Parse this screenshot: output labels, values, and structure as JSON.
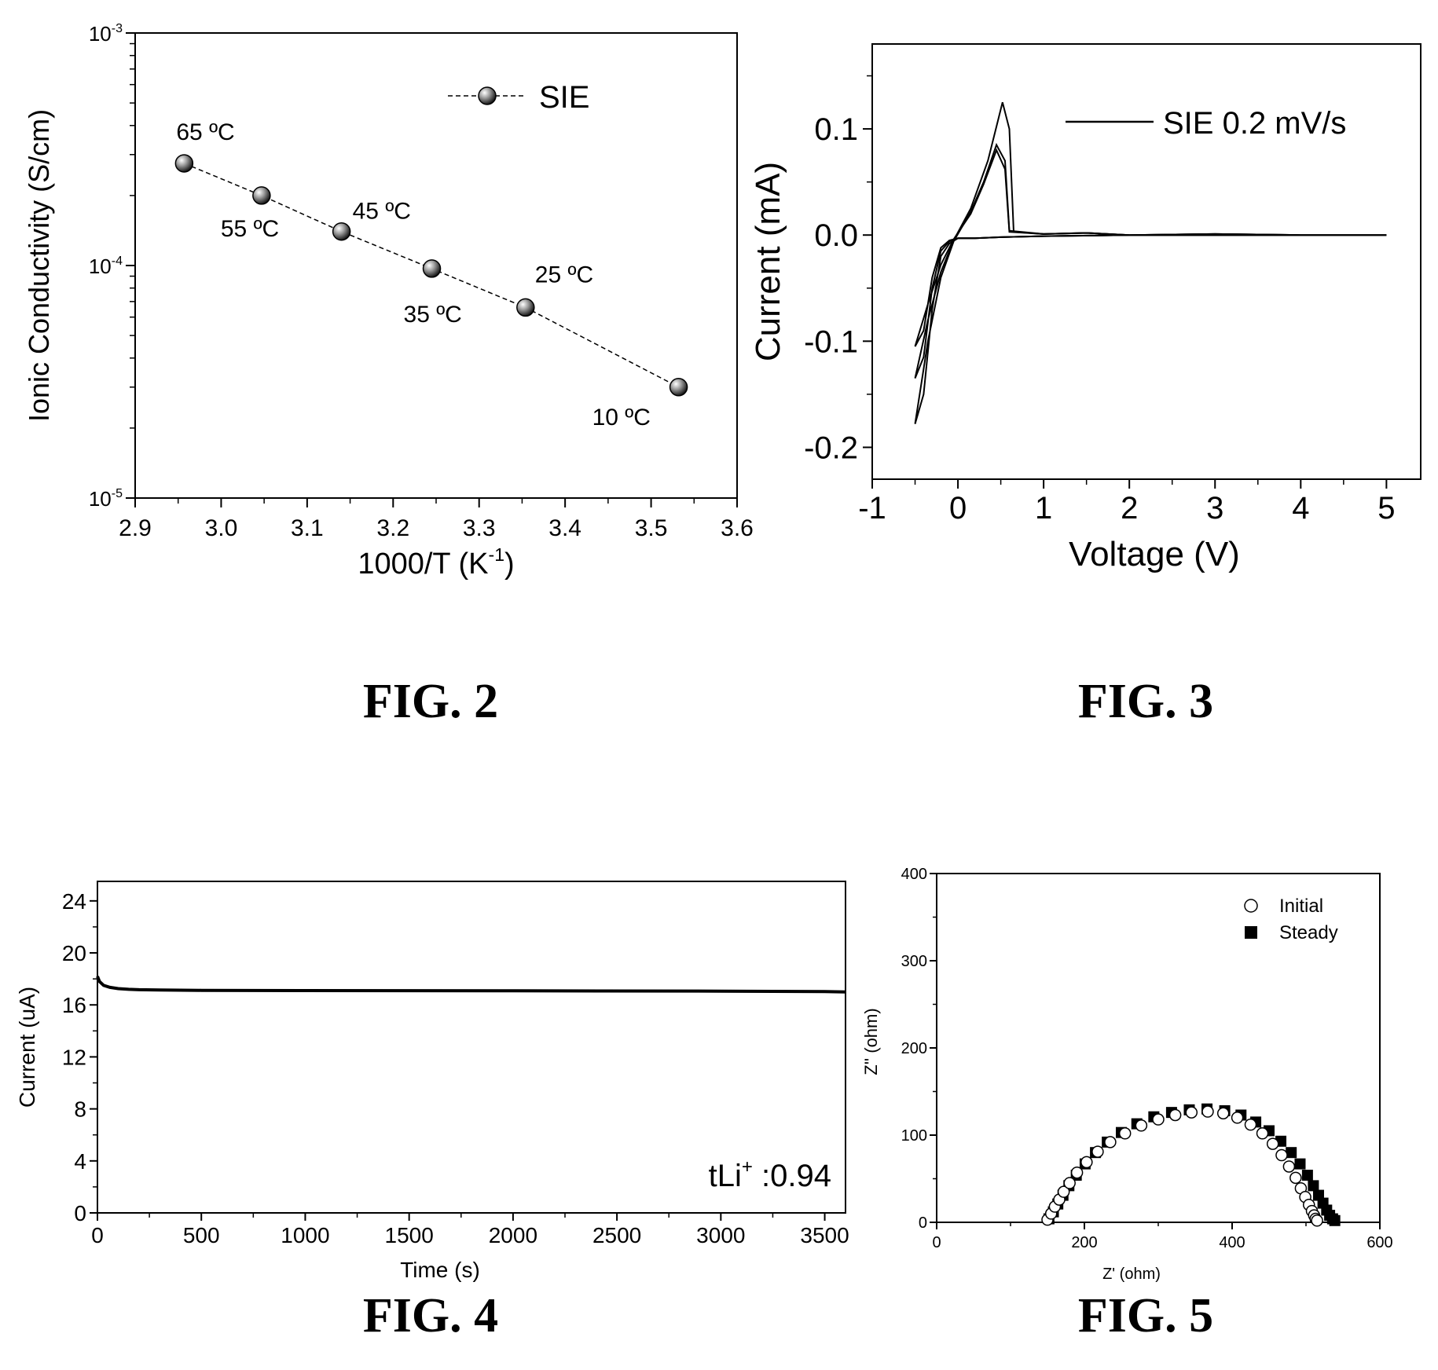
{
  "colors": {
    "ink": "#000000",
    "marker_fill": "#555555",
    "background": "#ffffff"
  },
  "captions": {
    "fig2": "FIG. 2",
    "fig3": "FIG. 3",
    "fig4": "FIG. 4",
    "fig5": "FIG. 5"
  },
  "chart_data": [
    {
      "id": "fig2",
      "type": "scatter",
      "x_scale": "linear",
      "y_scale": "log",
      "xlabel": "1000/T (K",
      "xlabel_sup": "-1",
      "xlabel_end": ")",
      "ylabel": "Ionic Conductivity (S/cm)",
      "xlim": [
        2.9,
        3.6
      ],
      "ylim": [
        1e-05,
        0.001
      ],
      "x_ticks": [
        "2.9",
        "3.0",
        "3.1",
        "3.2",
        "3.3",
        "3.4",
        "3.5",
        "3.6"
      ],
      "y_ticks": [
        {
          "base": "10",
          "exp": "-3"
        },
        {
          "base": "10",
          "exp": "-4"
        },
        {
          "base": "10",
          "exp": "-5"
        }
      ],
      "legend": {
        "placement": "top-right",
        "entries": [
          "SIE"
        ]
      },
      "series": [
        {
          "name": "SIE",
          "marker": "sphere",
          "line": "dashed",
          "x": [
            2.957,
            3.047,
            3.14,
            3.245,
            3.354,
            3.532
          ],
          "y": [
            0.000275,
            0.0002,
            0.00014,
            9.7e-05,
            6.6e-05,
            3e-05
          ],
          "labels": [
            "65 ºC",
            "55 ºC",
            "45 ºC",
            "35 ºC",
            "25 ºC",
            "10 ºC"
          ]
        }
      ]
    },
    {
      "id": "fig3",
      "type": "line",
      "xlabel": "Voltage (V)",
      "ylabel": "Current (mA)",
      "xlim": [
        -1,
        5.4
      ],
      "ylim": [
        -0.23,
        0.18
      ],
      "x_ticks": [
        "-1",
        "0",
        "1",
        "2",
        "3",
        "4",
        "5"
      ],
      "y_ticks": [
        "0.1",
        "0.0",
        "-0.1",
        "-0.2"
      ],
      "legend": {
        "placement": "top-right",
        "entries": [
          "SIE 0.2 mV/s"
        ]
      },
      "series": [
        {
          "name": "SIE 0.2 mV/s",
          "cycle": 1,
          "x": [
            -0.5,
            -0.35,
            -0.2,
            -0.05,
            0.15,
            0.35,
            0.52,
            0.6,
            0.65,
            1.0,
            1.5,
            2.0,
            3.0,
            4.0,
            5.0,
            4.0,
            2.0,
            1.0,
            0.5,
            0.2,
            0.0,
            -0.1,
            -0.2,
            -0.3,
            -0.4,
            -0.5
          ],
          "y": [
            -0.135,
            -0.08,
            -0.035,
            -0.005,
            0.025,
            0.07,
            0.125,
            0.1,
            0.003,
            0.001,
            0.002,
            0.0,
            0.001,
            0.0,
            0.0,
            0.0,
            0.0,
            -0.001,
            -0.002,
            -0.003,
            -0.003,
            -0.006,
            -0.015,
            -0.05,
            -0.115,
            -0.135
          ]
        },
        {
          "name": "SIE 0.2 mV/s",
          "cycle": 2,
          "x": [
            -0.5,
            -0.35,
            -0.2,
            -0.05,
            0.15,
            0.3,
            0.45,
            0.55,
            0.6,
            1.0,
            1.5,
            2.0,
            3.0,
            4.0,
            5.0,
            4.0,
            2.0,
            1.0,
            0.5,
            0.2,
            0.0,
            -0.1,
            -0.2,
            -0.3,
            -0.4,
            -0.5
          ],
          "y": [
            -0.178,
            -0.1,
            -0.04,
            -0.006,
            0.022,
            0.05,
            0.085,
            0.07,
            0.004,
            0.001,
            0.002,
            0.0,
            0.001,
            0.0,
            0.0,
            0.0,
            0.0,
            -0.001,
            -0.002,
            -0.003,
            -0.003,
            -0.008,
            -0.02,
            -0.07,
            -0.15,
            -0.178
          ]
        },
        {
          "name": "SIE 0.2 mV/s",
          "cycle": 3,
          "x": [
            -0.5,
            -0.35,
            -0.2,
            -0.05,
            0.15,
            0.3,
            0.45,
            0.55,
            0.6,
            1.0,
            1.5,
            2.0,
            3.0,
            4.0,
            5.0,
            4.0,
            2.0,
            1.0,
            0.5,
            0.2,
            0.0,
            -0.1,
            -0.2,
            -0.3,
            -0.4,
            -0.5
          ],
          "y": [
            -0.105,
            -0.065,
            -0.028,
            -0.004,
            0.02,
            0.048,
            0.08,
            0.062,
            0.003,
            0.001,
            0.002,
            0.0,
            0.001,
            0.0,
            0.0,
            0.0,
            0.0,
            -0.001,
            -0.002,
            -0.003,
            -0.003,
            -0.005,
            -0.012,
            -0.04,
            -0.09,
            -0.105
          ]
        }
      ]
    },
    {
      "id": "fig4",
      "type": "line",
      "xlabel": "Time (s)",
      "ylabel": "Current (uA)",
      "xlim": [
        0,
        3600
      ],
      "ylim": [
        0,
        25.5
      ],
      "x_ticks": [
        "0",
        "500",
        "1000",
        "1500",
        "2000",
        "2500",
        "3000",
        "3500"
      ],
      "y_ticks": [
        "0",
        "4",
        "8",
        "12",
        "16",
        "20",
        "24"
      ],
      "annotation": {
        "text": "tLi",
        "sup": "+",
        "after": " :0.94",
        "placement": "bottom-right"
      },
      "series": [
        {
          "x": [
            0,
            10,
            30,
            60,
            100,
            150,
            200,
            300,
            500,
            1000,
            2000,
            3000,
            3500,
            3600
          ],
          "y": [
            18.2,
            17.8,
            17.5,
            17.35,
            17.25,
            17.2,
            17.17,
            17.14,
            17.12,
            17.1,
            17.08,
            17.06,
            17.02,
            17.0
          ]
        }
      ]
    },
    {
      "id": "fig5",
      "type": "scatter",
      "xlabel": "Z' (ohm)",
      "ylabel": "Z'' (ohm)",
      "xlim": [
        0,
        600
      ],
      "ylim": [
        0,
        400
      ],
      "x_ticks": [
        "0",
        "200",
        "400",
        "600"
      ],
      "y_ticks": [
        "0",
        "100",
        "200",
        "300",
        "400"
      ],
      "legend": {
        "placement": "top-right",
        "entries": [
          "Initial",
          "Steady"
        ]
      },
      "series": [
        {
          "name": "Initial",
          "marker": "open-circle",
          "x": [
            150,
            155,
            160,
            166,
            172,
            180,
            190,
            203,
            218,
            235,
            255,
            277,
            300,
            323,
            345,
            367,
            388,
            407,
            425,
            441,
            455,
            467,
            477,
            486,
            493,
            499,
            504,
            508,
            511,
            513,
            515
          ],
          "y": [
            3,
            10,
            18,
            26,
            35,
            45,
            57,
            69,
            81,
            92,
            102,
            111,
            118,
            123,
            126,
            127,
            125,
            120,
            112,
            102,
            90,
            77,
            64,
            51,
            39,
            29,
            20,
            13,
            8,
            4,
            2
          ]
        },
        {
          "name": "Steady",
          "marker": "filled-square",
          "x": [
            152,
            158,
            164,
            171,
            179,
            189,
            201,
            215,
            231,
            250,
            271,
            294,
            318,
            342,
            366,
            390,
            412,
            432,
            450,
            466,
            480,
            492,
            502,
            510,
            517,
            523,
            528,
            532,
            536,
            539
          ],
          "y": [
            4,
            12,
            21,
            31,
            42,
            54,
            67,
            80,
            92,
            103,
            113,
            121,
            126,
            129,
            130,
            128,
            123,
            115,
            105,
            93,
            80,
            67,
            54,
            42,
            31,
            22,
            14,
            8,
            4,
            2
          ]
        }
      ]
    }
  ]
}
